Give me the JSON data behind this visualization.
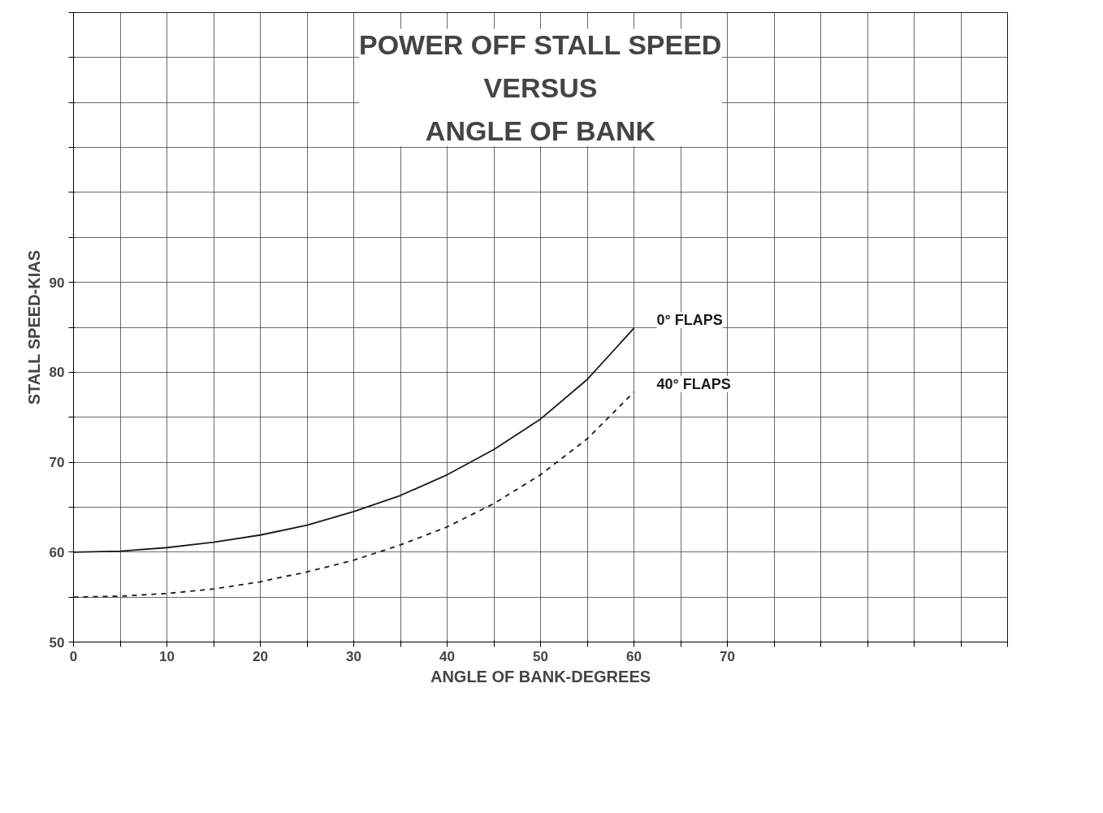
{
  "chart_data": {
    "type": "line",
    "title": "POWER OFF STALL SPEED\nVERSUS\nANGLE OF BANK",
    "xlabel": "ANGLE OF BANK-DEGREES",
    "ylabel": "STALL SPEED-KIAS",
    "xlim": [
      0,
      100
    ],
    "ylim": [
      50,
      120
    ],
    "xticks": [
      0,
      {
        "value": 5,
        "label": null
      },
      10,
      {
        "value": 15,
        "label": null
      },
      20,
      {
        "value": 25,
        "label": null
      },
      30,
      {
        "value": 35,
        "label": null
      },
      40,
      {
        "value": 45,
        "label": null
      },
      50,
      {
        "value": 55,
        "label": null
      },
      60,
      {
        "value": 65,
        "label": null
      },
      70,
      {
        "value": 75,
        "label": null
      },
      {
        "value": 80,
        "label": null
      },
      {
        "value": 85,
        "label": null
      },
      {
        "value": 90,
        "label": null
      },
      {
        "value": 95,
        "label": null
      },
      {
        "value": 100,
        "label": null
      }
    ],
    "yticks": [
      50,
      {
        "value": 55,
        "label": null
      },
      60,
      {
        "value": 65,
        "label": null
      },
      70,
      {
        "value": 75,
        "label": null
      },
      80,
      {
        "value": 85,
        "label": null
      },
      90,
      {
        "value": 95,
        "label": null
      },
      {
        "value": 100,
        "label": null
      },
      {
        "value": 105,
        "label": null
      },
      {
        "value": 110,
        "label": null
      },
      {
        "value": 115,
        "label": null
      },
      {
        "value": 120,
        "label": null
      }
    ],
    "grid": true,
    "series": [
      {
        "name": "0° FLAPS",
        "color": "#1a1a1a",
        "line_style": "solid",
        "x": [
          0,
          5,
          10,
          15,
          20,
          25,
          30,
          35,
          40,
          45,
          50,
          55,
          60
        ],
        "values": [
          60,
          60.1,
          60.5,
          61.1,
          61.9,
          63,
          64.5,
          66.3,
          68.6,
          71.4,
          74.8,
          79.2,
          84.9
        ]
      },
      {
        "name": "40° FLAPS",
        "color": "#1a1a1a",
        "line_style": "dashed",
        "x": [
          0,
          5,
          10,
          15,
          20,
          25,
          30,
          35,
          40,
          45,
          50,
          55,
          60
        ],
        "values": [
          55,
          55.1,
          55.4,
          55.9,
          56.7,
          57.8,
          59.1,
          60.8,
          62.8,
          65.4,
          68.6,
          72.6,
          77.8
        ]
      }
    ]
  }
}
